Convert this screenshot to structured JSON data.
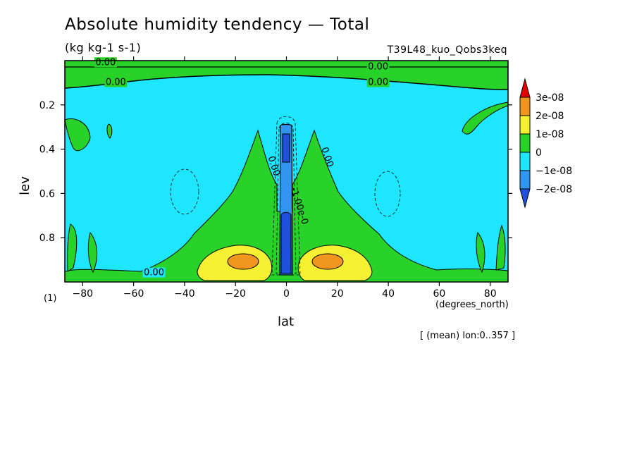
{
  "title": "Absolute humidity tendency — Total",
  "subtitle": "(kg kg-1 s-1)",
  "experiment": "T39L48_kuo_Qobs3keq",
  "panel_label": "(1)",
  "footnote": "[ (mean) lon:0..357 ]",
  "colors": {
    "level_3e-08": "#e60000",
    "level_2e-08": "#f0961e",
    "level_1e-08": "#f5f032",
    "level_0": "#28d228",
    "level_-1e-08": "#1ee6ff",
    "level_-2e-08": "#3296f0",
    "level_-3e-08": "#1e50dc"
  },
  "chart_data": {
    "type": "contour",
    "title": "Absolute humidity tendency — Total",
    "units": "(kg kg-1 s-1)",
    "xlabel": "lat",
    "xunits": "(degrees_north)",
    "ylabel": "lev",
    "xlim": [
      -87,
      87
    ],
    "ylim": [
      1.0,
      0.0
    ],
    "x_ticks": [
      -80,
      -60,
      -40,
      -20,
      0,
      20,
      40,
      60,
      80
    ],
    "x_tick_labels": [
      "−80",
      "−60",
      "−40",
      "−20",
      "0",
      "20",
      "40",
      "60",
      "80"
    ],
    "y_ticks": [
      0.2,
      0.4,
      0.6,
      0.8
    ],
    "y_tick_labels": [
      "0.2",
      "0.4",
      "0.6",
      "0.8"
    ],
    "legend": {
      "position": "right",
      "levels": [
        {
          "label": "3e-08",
          "value": 3e-08
        },
        {
          "label": "2e-08",
          "value": 2e-08
        },
        {
          "label": "1e-08",
          "value": 1e-08
        },
        {
          "label": "0",
          "value": 0
        },
        {
          "label": "−1e-08",
          "value": -1e-08
        },
        {
          "label": "−2e-08",
          "value": -2e-08
        }
      ]
    },
    "contour_labels": [
      {
        "text": "0.00",
        "lat": -71,
        "lev": 0.02
      },
      {
        "text": "0.00",
        "lat": -67,
        "lev": 0.11
      },
      {
        "text": "0.00",
        "lat": 36,
        "lev": 0.04
      },
      {
        "text": "0.00",
        "lat": 36,
        "lev": 0.11
      },
      {
        "text": "0.00",
        "lat": -6,
        "lev": 0.48
      },
      {
        "text": "0.00",
        "lat": 15,
        "lev": 0.44
      },
      {
        "text": "-1.00e-0",
        "lat": 4,
        "lev": 0.66
      },
      {
        "text": "0.00",
        "lat": -52,
        "lev": 0.97
      }
    ],
    "features": [
      {
        "value_class": "0 to 1e-08",
        "description": "upper band",
        "lev_range": [
          0.0,
          0.12
        ]
      },
      {
        "value_class": "-2e-08 to -1e-08",
        "lat_range": [
          -3,
          3
        ],
        "lev_range": [
          0.28,
          1.0
        ]
      },
      {
        "value_class": "1e-08 to 2e-08",
        "lat_center": -20,
        "lev_center": 0.92
      },
      {
        "value_class": "1e-08 to 2e-08",
        "lat_center": 17,
        "lev_center": 0.92
      }
    ]
  }
}
